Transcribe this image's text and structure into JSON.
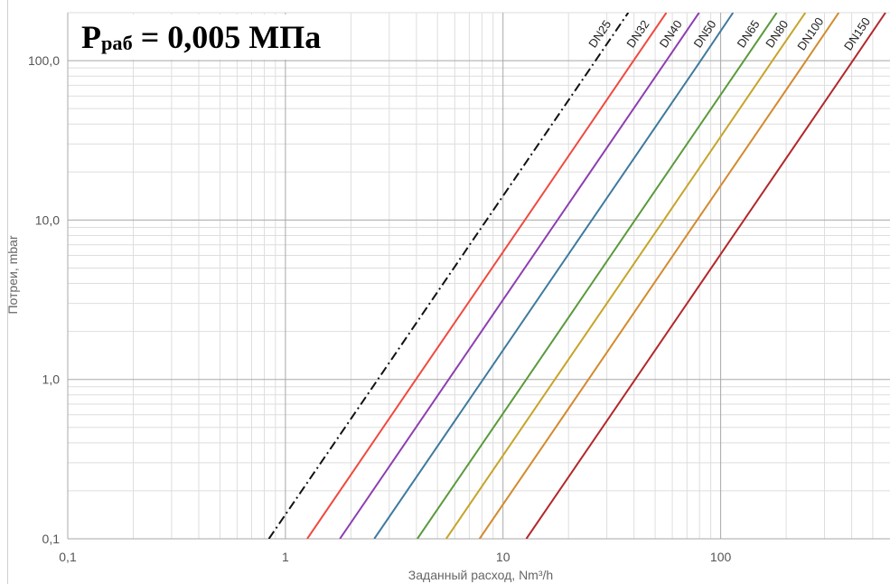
{
  "chart_data": {
    "type": "line",
    "title": {
      "symbol": "P",
      "subscript": "раб",
      "value": "= 0,005 МПа"
    },
    "xlabel": "Заданный расход, Nm³/h",
    "ylabel": "Потреи, mbar",
    "xscale": "log",
    "yscale": "log",
    "xlim": [
      0.1,
      600
    ],
    "ylim": [
      0.1,
      200
    ],
    "grid": true,
    "legend": "inline-labels",
    "x_ticks": [
      {
        "value": 0.1,
        "label": "0,1"
      },
      {
        "value": 1,
        "label": "1"
      },
      {
        "value": 10,
        "label": "10"
      },
      {
        "value": 100,
        "label": "100"
      }
    ],
    "y_ticks": [
      {
        "value": 0.1,
        "label": "0,1"
      },
      {
        "value": 1,
        "label": "1,0"
      },
      {
        "value": 10,
        "label": "10,0"
      },
      {
        "value": 100,
        "label": "100,0"
      }
    ],
    "series": [
      {
        "name": "DN25",
        "color": "#111111",
        "style": "dash-dot",
        "x": [
          0.84,
          2.66,
          8.4,
          26.6,
          37.6
        ],
        "y": [
          0.1,
          1,
          10,
          100,
          200
        ]
      },
      {
        "name": "DN32",
        "color": "#ef4a3f",
        "style": "solid",
        "x": [
          1.26,
          3.98,
          12.6,
          39.8,
          56.3
        ],
        "y": [
          0.1,
          1,
          10,
          100,
          200
        ]
      },
      {
        "name": "DN40",
        "color": "#8e3fb0",
        "style": "solid",
        "x": [
          1.78,
          5.63,
          17.8,
          56.3,
          79.6
        ],
        "y": [
          0.1,
          1,
          10,
          100,
          200
        ]
      },
      {
        "name": "DN50",
        "color": "#3f7a9e",
        "style": "solid",
        "x": [
          2.56,
          8.1,
          25.6,
          81,
          114
        ],
        "y": [
          0.1,
          1,
          10,
          100,
          200
        ]
      },
      {
        "name": "DN65",
        "color": "#5a9a3c",
        "style": "solid",
        "x": [
          4.04,
          12.8,
          40.4,
          128,
          181
        ],
        "y": [
          0.1,
          1,
          10,
          100,
          200
        ]
      },
      {
        "name": "DN80",
        "color": "#c6a42b",
        "style": "solid",
        "x": [
          5.48,
          17.3,
          54.8,
          173,
          245
        ],
        "y": [
          0.1,
          1,
          10,
          100,
          200
        ]
      },
      {
        "name": "DN100",
        "color": "#d38a2e",
        "style": "solid",
        "x": [
          7.8,
          24.7,
          78,
          247,
          349
        ],
        "y": [
          0.1,
          1,
          10,
          100,
          200
        ]
      },
      {
        "name": "DN150",
        "color": "#b2282b",
        "style": "solid",
        "x": [
          12.8,
          40.5,
          128,
          405,
          572
        ],
        "y": [
          0.1,
          1,
          10,
          100,
          200
        ]
      }
    ]
  }
}
